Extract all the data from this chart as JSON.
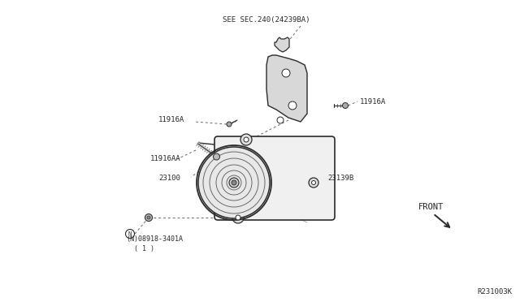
{
  "bg_color": "#ffffff",
  "line_color": "#2a2a2a",
  "text_color": "#2a2a2a",
  "ref_code": "R231003K",
  "see_sec_label": "SEE SEC.240(24239BA)",
  "labels": {
    "11916A_right": "11916A",
    "11916A_left": "11916A",
    "11916AA": "11916AA",
    "23100": "23100",
    "23139B": "23139B",
    "08918_3401A_line1": "(N)08918-3401A",
    "08918_3401A_line2": "  ( 1 )"
  },
  "front_label": "FRONT",
  "figsize": [
    6.4,
    3.72
  ],
  "dpi": 100
}
